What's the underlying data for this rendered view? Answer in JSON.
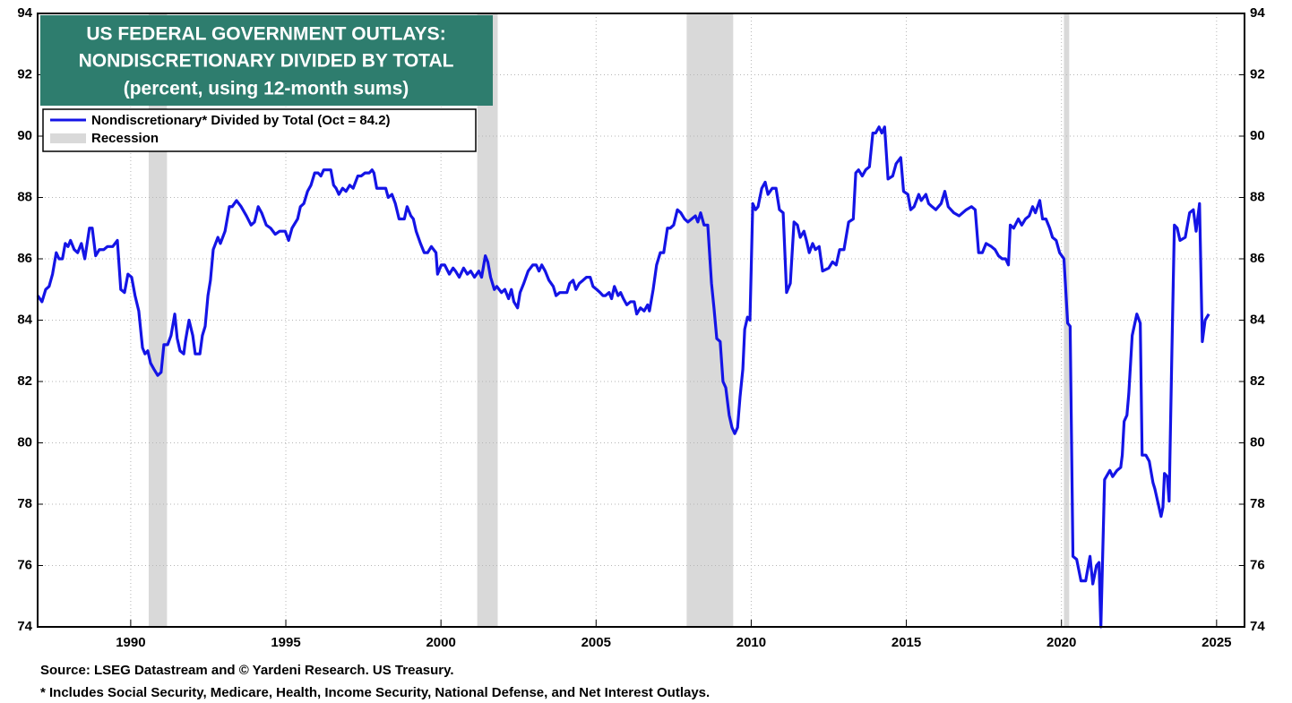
{
  "chart_data": {
    "type": "line",
    "title": [
      "US FEDERAL GOVERNMENT OUTLAYS:",
      "NONDISCRETIONARY DIVIDED BY TOTAL"
    ],
    "subtitle": "(percent, using 12-month sums)",
    "notes": [
      "Source: LSEG Datastream and © Yardeni Research. US Treasury.",
      "* Includes Social Security, Medicare, Health, Income Security, National Defense, and Net Interest Outlays."
    ],
    "xlim": [
      1987,
      2025.9
    ],
    "xticks": [
      1990,
      1995,
      2000,
      2005,
      2010,
      2015,
      2020,
      2025
    ],
    "ylim": [
      74,
      94
    ],
    "yticks": [
      74,
      76,
      78,
      80,
      82,
      84,
      86,
      88,
      90,
      92,
      94
    ],
    "grid": true,
    "recessions": {
      "name": "Recession",
      "color": "#d9d9d9",
      "spans": [
        [
          1990.58,
          1991.17
        ],
        [
          2001.17,
          2001.83
        ],
        [
          2007.92,
          2009.42
        ],
        [
          2020.08,
          2020.25
        ]
      ]
    },
    "series": [
      {
        "name": "Nondiscretionary* Divided by Total (Oct = 84.2)",
        "color": "#1414e6",
        "x": [
          1987.0,
          1987.14,
          1987.26,
          1987.37,
          1987.48,
          1987.6,
          1987.69,
          1987.8,
          1987.89,
          1987.98,
          1988.06,
          1988.18,
          1988.29,
          1988.41,
          1988.52,
          1988.67,
          1988.76,
          1988.87,
          1988.99,
          1989.13,
          1989.25,
          1989.42,
          1989.57,
          1989.68,
          1989.8,
          1989.91,
          1990.03,
          1990.14,
          1990.26,
          1990.38,
          1990.46,
          1990.55,
          1990.64,
          1990.75,
          1990.87,
          1990.98,
          1991.07,
          1991.19,
          1991.3,
          1991.42,
          1991.5,
          1991.59,
          1991.71,
          1991.76,
          1991.88,
          1992.0,
          1992.08,
          1992.23,
          1992.31,
          1992.4,
          1992.49,
          1992.57,
          1992.66,
          1992.81,
          1992.89,
          1993.04,
          1993.18,
          1993.27,
          1993.41,
          1993.56,
          1993.73,
          1993.88,
          1993.99,
          1994.11,
          1994.22,
          1994.37,
          1994.51,
          1994.66,
          1994.8,
          1994.98,
          1995.09,
          1995.2,
          1995.38,
          1995.47,
          1995.58,
          1995.7,
          1995.81,
          1995.93,
          1996.04,
          1996.13,
          1996.22,
          1996.45,
          1996.54,
          1996.62,
          1996.71,
          1996.83,
          1996.94,
          1997.06,
          1997.17,
          1997.32,
          1997.43,
          1997.55,
          1997.69,
          1997.78,
          1997.84,
          1997.93,
          1998.07,
          1998.22,
          1998.3,
          1998.42,
          1998.53,
          1998.65,
          1998.82,
          1998.91,
          1999.03,
          1999.11,
          1999.2,
          1999.34,
          1999.46,
          1999.57,
          1999.69,
          1999.84,
          1999.89,
          2000.01,
          2000.12,
          2000.27,
          2000.39,
          2000.47,
          2000.59,
          2000.73,
          2000.85,
          2000.96,
          2001.08,
          2001.22,
          2001.31,
          2001.43,
          2001.51,
          2001.6,
          2001.72,
          2001.8,
          2001.95,
          2002.06,
          2002.18,
          2002.27,
          2002.35,
          2002.47,
          2002.55,
          2002.67,
          2002.81,
          2002.96,
          2003.07,
          2003.16,
          2003.25,
          2003.36,
          2003.48,
          2003.62,
          2003.71,
          2003.83,
          2003.97,
          2004.06,
          2004.15,
          2004.26,
          2004.35,
          2004.46,
          2004.58,
          2004.69,
          2004.81,
          2004.9,
          2005.02,
          2005.13,
          2005.22,
          2005.3,
          2005.42,
          2005.5,
          2005.59,
          2005.71,
          2005.79,
          2005.88,
          2005.99,
          2006.11,
          2006.23,
          2006.31,
          2006.43,
          2006.55,
          2006.66,
          2006.72,
          2006.84,
          2006.95,
          2007.07,
          2007.18,
          2007.3,
          2007.39,
          2007.5,
          2007.62,
          2007.73,
          2007.85,
          2007.96,
          2008.08,
          2008.2,
          2008.28,
          2008.37,
          2008.48,
          2008.6,
          2008.72,
          2008.8,
          2008.89,
          2009.0,
          2009.09,
          2009.18,
          2009.29,
          2009.38,
          2009.47,
          2009.56,
          2009.64,
          2009.73,
          2009.79,
          2009.88,
          2009.96,
          2010.05,
          2010.14,
          2010.22,
          2010.34,
          2010.45,
          2010.54,
          2010.68,
          2010.8,
          2010.91,
          2011.03,
          2011.14,
          2011.26,
          2011.38,
          2011.49,
          2011.58,
          2011.7,
          2011.78,
          2011.87,
          2011.98,
          2012.07,
          2012.19,
          2012.3,
          2012.5,
          2012.62,
          2012.74,
          2012.85,
          2012.99,
          2013.14,
          2013.29,
          2013.37,
          2013.46,
          2013.58,
          2013.69,
          2013.81,
          2013.92,
          2014.01,
          2014.12,
          2014.21,
          2014.3,
          2014.41,
          2014.56,
          2014.67,
          2014.82,
          2014.91,
          2015.05,
          2015.14,
          2015.25,
          2015.4,
          2015.48,
          2015.63,
          2015.72,
          2015.83,
          2015.95,
          2016.12,
          2016.24,
          2016.35,
          2016.53,
          2016.7,
          2016.93,
          2017.1,
          2017.22,
          2017.33,
          2017.45,
          2017.57,
          2017.74,
          2017.86,
          2017.97,
          2018.09,
          2018.2,
          2018.29,
          2018.35,
          2018.46,
          2018.61,
          2018.72,
          2018.84,
          2018.96,
          2019.07,
          2019.16,
          2019.3,
          2019.39,
          2019.5,
          2019.62,
          2019.71,
          2019.83,
          2019.94,
          2020.08,
          2020.2,
          2020.28,
          2020.37,
          2020.49,
          2020.63,
          2020.78,
          2020.92,
          2021.01,
          2021.13,
          2021.21,
          2021.27,
          2021.39,
          2021.56,
          2021.65,
          2021.79,
          2021.91,
          2021.96,
          2022.02,
          2022.11,
          2022.17,
          2022.28,
          2022.43,
          2022.54,
          2022.6,
          2022.72,
          2022.83,
          2022.95,
          2023.01,
          2023.21,
          2023.27,
          2023.32,
          2023.41,
          2023.47,
          2023.56,
          2023.64,
          2023.73,
          2023.82,
          2023.99,
          2024.13,
          2024.25,
          2024.34,
          2024.45,
          2024.54,
          2024.63,
          2024.75
        ],
        "values": [
          84.8,
          84.6,
          85.0,
          85.1,
          85.5,
          86.2,
          86.0,
          86.0,
          86.5,
          86.4,
          86.6,
          86.3,
          86.2,
          86.5,
          86.0,
          87.0,
          87.0,
          86.1,
          86.3,
          86.3,
          86.4,
          86.4,
          86.6,
          85.0,
          84.9,
          85.5,
          85.4,
          84.8,
          84.3,
          83.1,
          82.9,
          83.0,
          82.6,
          82.4,
          82.2,
          82.3,
          83.2,
          83.2,
          83.5,
          84.2,
          83.4,
          83.0,
          82.9,
          83.3,
          84.0,
          83.5,
          82.9,
          82.9,
          83.5,
          83.8,
          84.8,
          85.3,
          86.3,
          86.7,
          86.5,
          86.9,
          87.7,
          87.7,
          87.9,
          87.7,
          87.4,
          87.1,
          87.2,
          87.7,
          87.5,
          87.1,
          87.0,
          86.8,
          86.9,
          86.9,
          86.6,
          87.0,
          87.3,
          87.7,
          87.8,
          88.2,
          88.4,
          88.8,
          88.8,
          88.7,
          88.9,
          88.9,
          88.4,
          88.3,
          88.1,
          88.3,
          88.2,
          88.4,
          88.3,
          88.7,
          88.7,
          88.8,
          88.8,
          88.9,
          88.8,
          88.3,
          88.3,
          88.3,
          88.0,
          88.1,
          87.8,
          87.3,
          87.3,
          87.7,
          87.4,
          87.3,
          86.9,
          86.5,
          86.2,
          86.2,
          86.4,
          86.2,
          85.5,
          85.8,
          85.8,
          85.5,
          85.7,
          85.6,
          85.4,
          85.7,
          85.5,
          85.6,
          85.4,
          85.6,
          85.4,
          86.1,
          85.9,
          85.4,
          85.0,
          85.1,
          84.9,
          85.0,
          84.7,
          85.0,
          84.6,
          84.4,
          84.9,
          85.2,
          85.6,
          85.8,
          85.8,
          85.6,
          85.8,
          85.6,
          85.3,
          85.1,
          84.8,
          84.9,
          84.9,
          84.9,
          85.2,
          85.3,
          85.0,
          85.2,
          85.3,
          85.4,
          85.4,
          85.1,
          85.0,
          84.9,
          84.8,
          84.8,
          84.9,
          84.7,
          85.1,
          84.8,
          84.9,
          84.7,
          84.5,
          84.6,
          84.6,
          84.2,
          84.4,
          84.3,
          84.5,
          84.3,
          85.0,
          85.8,
          86.2,
          86.2,
          87.0,
          87.0,
          87.1,
          87.6,
          87.5,
          87.3,
          87.2,
          87.3,
          87.4,
          87.2,
          87.5,
          87.1,
          87.1,
          85.2,
          84.4,
          83.4,
          83.3,
          82.0,
          81.8,
          80.9,
          80.5,
          80.3,
          80.5,
          81.5,
          82.4,
          83.7,
          84.1,
          84.0,
          87.8,
          87.6,
          87.7,
          88.3,
          88.5,
          88.1,
          88.3,
          88.3,
          87.6,
          87.5,
          84.9,
          85.2,
          87.2,
          87.1,
          86.7,
          86.9,
          86.6,
          86.2,
          86.5,
          86.3,
          86.4,
          85.6,
          85.7,
          85.9,
          85.8,
          86.3,
          86.3,
          87.2,
          87.3,
          88.8,
          88.9,
          88.7,
          88.9,
          89.0,
          90.1,
          90.1,
          90.3,
          90.1,
          90.3,
          88.6,
          88.7,
          89.1,
          89.3,
          88.2,
          88.1,
          87.6,
          87.7,
          88.1,
          87.9,
          88.1,
          87.8,
          87.7,
          87.6,
          87.8,
          88.2,
          87.7,
          87.5,
          87.4,
          87.6,
          87.7,
          87.6,
          86.2,
          86.2,
          86.5,
          86.4,
          86.3,
          86.1,
          86.0,
          86.0,
          85.8,
          87.1,
          87.0,
          87.3,
          87.1,
          87.3,
          87.4,
          87.7,
          87.5,
          87.9,
          87.3,
          87.3,
          87.0,
          86.7,
          86.6,
          86.2,
          86.0,
          83.9,
          83.8,
          76.3,
          76.2,
          75.5,
          75.5,
          76.3,
          75.4,
          76.0,
          76.1,
          74.0,
          78.8,
          79.1,
          78.9,
          79.1,
          79.2,
          79.6,
          80.7,
          80.9,
          81.6,
          83.5,
          84.2,
          83.9,
          79.6,
          79.6,
          79.4,
          78.7,
          78.5,
          77.6,
          77.9,
          79.0,
          78.9,
          78.1,
          83.0,
          87.1,
          87.0,
          86.6,
          86.7,
          87.5,
          87.6,
          86.9,
          87.8,
          83.3,
          84.0,
          84.2
        ]
      }
    ]
  }
}
